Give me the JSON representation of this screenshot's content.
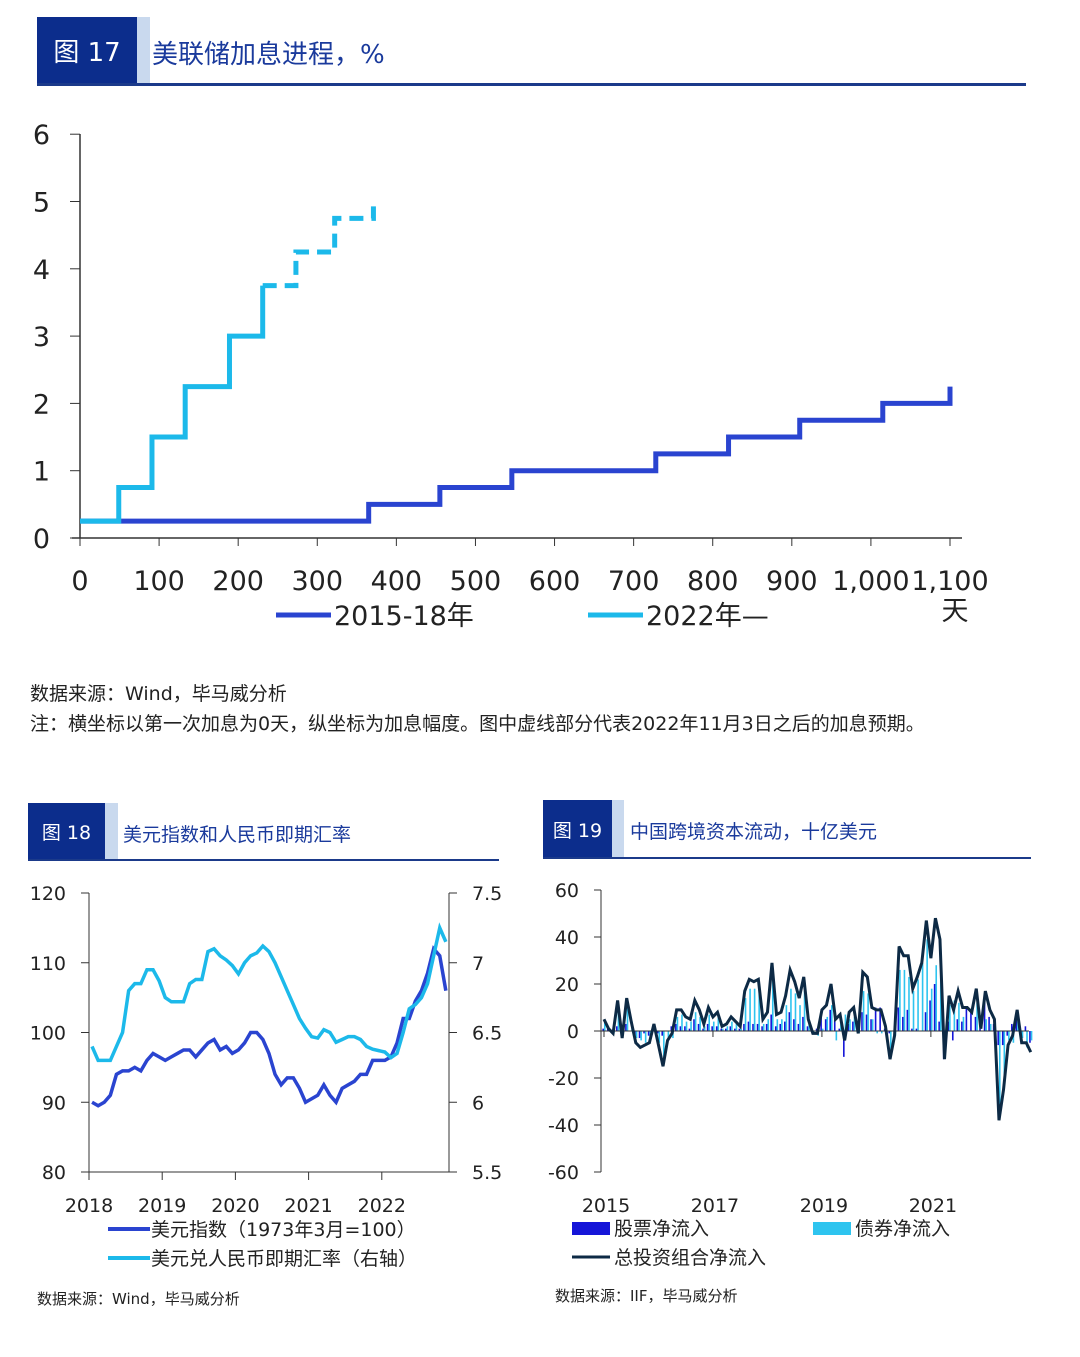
{
  "colors": {
    "header_box": "#0c2d8c",
    "header_strip": "#c9d9ee",
    "dark_blue": "#2a44d0",
    "light_blue": "#1cb9ea",
    "equity": "#1515d8",
    "bond": "#2ec4ef",
    "total": "#0d2a45"
  },
  "fig17": {
    "label": "图 17",
    "title": "美联储加息进程，%",
    "source": "数据来源：Wind，毕马威分析",
    "note": "注：横坐标以第一次加息为0天，纵坐标为加息幅度。图中虚线部分代表2022年11月3日之后的加息预期。"
  },
  "fig18": {
    "label": "图 18",
    "title": "美元指数和人民币即期汇率",
    "source": "数据来源：Wind，毕马威分析"
  },
  "fig19": {
    "label": "图 19",
    "title": "中国跨境资本流动，十亿美元",
    "source": "数据来源：IIF，毕马威分析"
  },
  "chart_data": [
    {
      "type": "line",
      "xlabel": "天",
      "ylim": [
        0,
        6
      ],
      "xlim": [
        0,
        1100
      ],
      "xticks": [
        "0",
        "100",
        "200",
        "300",
        "400",
        "500",
        "600",
        "700",
        "800",
        "900",
        "1,000",
        "1,100"
      ],
      "yticks": [
        "0",
        "1",
        "2",
        "3",
        "4",
        "5",
        "6"
      ],
      "legend": "bottom",
      "series": [
        {
          "name": "2015-18年",
          "step": true,
          "x": [
            0,
            365,
            455,
            546,
            728,
            820,
            910,
            1015,
            1100,
            1100
          ],
          "y": [
            0.25,
            0.5,
            0.75,
            1.0,
            1.25,
            1.5,
            1.75,
            2.0,
            2.0,
            2.25
          ]
        },
        {
          "name": "2022年—",
          "step": true,
          "x": [
            0,
            49,
            91,
            133,
            189,
            231
          ],
          "y": [
            0.25,
            0.75,
            1.5,
            2.25,
            3.0,
            3.75
          ],
          "projected": {
            "x": [
              231,
              273,
              322,
              371,
              371
            ],
            "y": [
              3.75,
              4.25,
              4.75,
              4.75,
              5.0
            ]
          }
        }
      ]
    },
    {
      "type": "line",
      "frequency": "monthly",
      "start": "2018-01",
      "xticks": [
        "2018",
        "2019",
        "2020",
        "2021",
        "2022"
      ],
      "ylim": [
        80,
        120
      ],
      "yticks": [
        "80",
        "90",
        "100",
        "110",
        "120"
      ],
      "y2lim": [
        5.5,
        7.5
      ],
      "y2ticks": [
        "5.5",
        "6",
        "6.5",
        "7",
        "7.5"
      ],
      "legend": "bottom",
      "series": [
        {
          "name": "美元指数（1973年3月=100）",
          "axis": "left",
          "values": [
            90,
            89.5,
            90,
            91,
            94,
            94.5,
            94.5,
            95,
            94.5,
            96,
            97,
            96.5,
            96,
            96.5,
            97,
            97.5,
            97.5,
            96.5,
            97.5,
            98.5,
            99,
            97.5,
            98,
            97,
            97.5,
            98.5,
            100,
            100,
            99,
            97,
            94,
            92.5,
            93.5,
            93.5,
            92,
            90,
            90.5,
            91,
            92.5,
            91,
            90,
            92,
            92.5,
            93,
            94,
            94,
            96,
            96,
            96,
            96.5,
            98.5,
            102,
            102,
            104.5,
            106,
            108.5,
            112,
            111,
            106
          ]
        },
        {
          "name": "美元兑人民币即期汇率（右轴）",
          "axis": "right",
          "values": [
            6.4,
            6.3,
            6.3,
            6.3,
            6.4,
            6.5,
            6.8,
            6.85,
            6.85,
            6.95,
            6.95,
            6.87,
            6.75,
            6.72,
            6.72,
            6.72,
            6.85,
            6.88,
            6.88,
            7.08,
            7.1,
            7.05,
            7.02,
            6.98,
            6.92,
            7.0,
            7.05,
            7.07,
            7.12,
            7.08,
            7.0,
            6.9,
            6.8,
            6.7,
            6.6,
            6.53,
            6.47,
            6.46,
            6.52,
            6.5,
            6.43,
            6.45,
            6.47,
            6.47,
            6.45,
            6.4,
            6.38,
            6.37,
            6.36,
            6.32,
            6.35,
            6.5,
            6.67,
            6.7,
            6.75,
            6.85,
            7.05,
            7.25,
            7.15
          ]
        }
      ]
    },
    {
      "type": "bar",
      "frequency": "monthly",
      "start": "2015-01",
      "xticks": [
        "2015",
        "2017",
        "2019",
        "2021"
      ],
      "ylim": [
        -60,
        60
      ],
      "yticks": [
        "-60",
        "-40",
        "-20",
        "0",
        "20",
        "40",
        "60"
      ],
      "legend": "bottom",
      "series": [
        {
          "name": "股票净流入",
          "type": "bar",
          "values": [
            1,
            1,
            0,
            2,
            -1,
            3,
            0,
            -2,
            -3,
            -1,
            -2,
            1,
            -1,
            -2,
            0,
            2,
            3,
            2,
            2,
            1,
            5,
            3,
            1,
            3,
            2,
            2,
            1,
            1,
            2,
            1,
            1,
            3,
            4,
            3,
            3,
            2,
            3,
            7,
            2,
            3,
            4,
            8,
            5,
            3,
            6,
            2,
            0,
            1,
            8,
            5,
            9,
            9,
            1,
            -11,
            3,
            4,
            0,
            8,
            7,
            5,
            10,
            10,
            1,
            -1,
            0,
            10,
            6,
            9,
            1,
            1,
            0,
            8,
            13,
            20,
            4,
            -12,
            4,
            -4,
            5,
            4,
            10,
            8,
            6,
            1,
            12,
            6,
            3,
            -6,
            -6,
            -2,
            3,
            5,
            -2,
            2,
            -5
          ]
        },
        {
          "name": "债券净流入",
          "type": "bar",
          "values": [
            4,
            0,
            -1,
            11,
            -2,
            11,
            4,
            -3,
            -4,
            -5,
            -3,
            2,
            -5,
            -13,
            -4,
            -3,
            6,
            7,
            4,
            4,
            8,
            6,
            2,
            7,
            4,
            6,
            1,
            2,
            4,
            3,
            1,
            14,
            18,
            18,
            19,
            3,
            5,
            22,
            5,
            5,
            11,
            18,
            16,
            11,
            17,
            3,
            -1,
            -2,
            1,
            6,
            11,
            -4,
            6,
            7,
            5,
            6,
            -1,
            17,
            16,
            5,
            -1,
            -1,
            1,
            -11,
            -2,
            26,
            26,
            23,
            17,
            22,
            29,
            39,
            18,
            28,
            35,
            0,
            11,
            13,
            12,
            6,
            0,
            0,
            12,
            0,
            5,
            3,
            2,
            -32,
            -19,
            -4,
            -5,
            4,
            -3,
            -7,
            -4
          ]
        },
        {
          "name": "总投资组合净流入",
          "type": "line",
          "values": [
            5,
            1,
            -1,
            13,
            -3,
            14,
            4,
            -5,
            -7,
            -6,
            -5,
            3,
            -6,
            -15,
            -4,
            -1,
            9,
            9,
            6,
            5,
            13,
            9,
            3,
            10,
            6,
            8,
            2,
            3,
            6,
            4,
            2,
            17,
            22,
            21,
            22,
            5,
            8,
            29,
            7,
            8,
            15,
            26,
            21,
            14,
            23,
            5,
            -1,
            -1,
            9,
            11,
            20,
            5,
            7,
            -4,
            8,
            10,
            -1,
            25,
            23,
            10,
            9,
            9,
            2,
            -12,
            -2,
            36,
            32,
            32,
            18,
            23,
            29,
            47,
            31,
            48,
            39,
            -12,
            15,
            9,
            17,
            10,
            10,
            8,
            18,
            1,
            17,
            9,
            5,
            -38,
            -25,
            -6,
            -2,
            9,
            -5,
            -5,
            -9
          ]
        }
      ]
    }
  ]
}
